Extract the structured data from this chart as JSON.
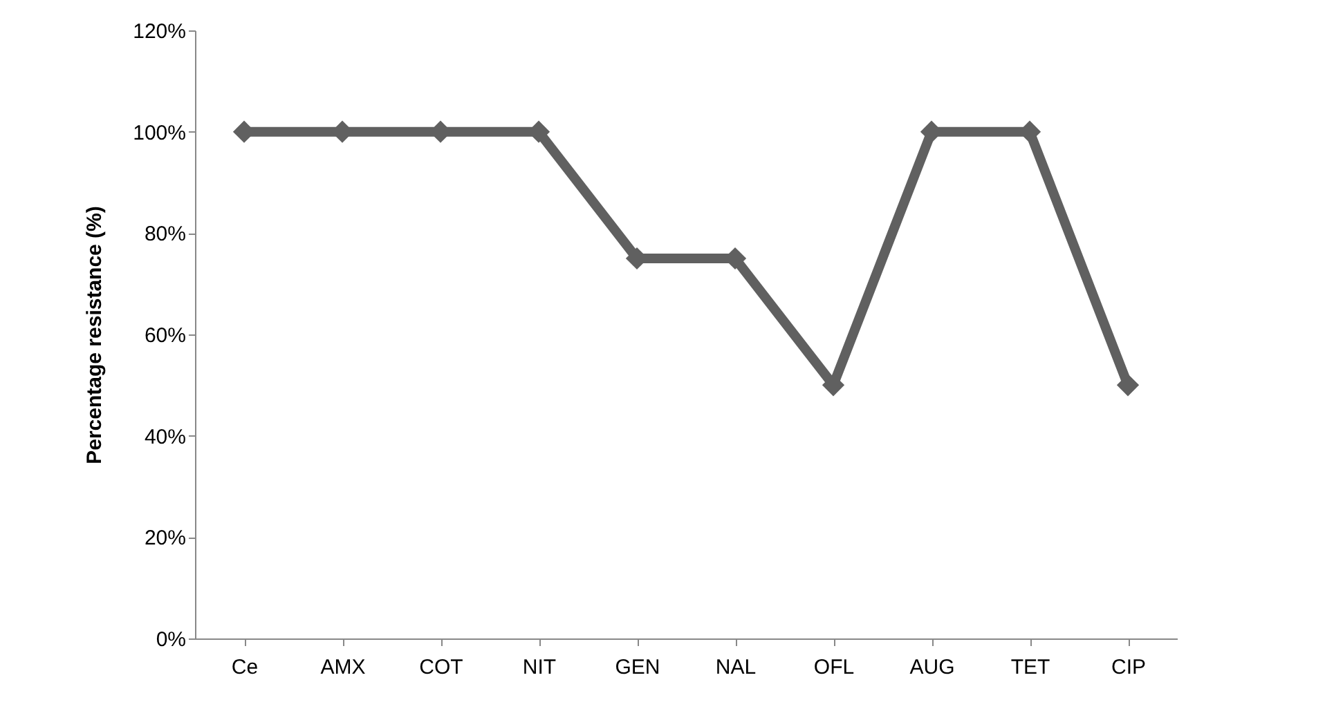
{
  "chart_data": {
    "type": "line",
    "ylabel": "Percentage resistance (%)",
    "categories": [
      "Ce",
      "AMX",
      "COT",
      "NIT",
      "GEN",
      "NAL",
      "OFL",
      "AUG",
      "TET",
      "CIP"
    ],
    "series": [
      {
        "color": "#606060",
        "values": [
          100,
          100,
          100,
          100,
          75,
          75,
          50,
          100,
          100,
          50
        ]
      }
    ],
    "ylim": [
      0,
      120
    ],
    "yticks": [
      {
        "value": 0,
        "label": "0%"
      },
      {
        "value": 20,
        "label": "20%"
      },
      {
        "value": 40,
        "label": "40%"
      },
      {
        "value": 60,
        "label": "60%"
      },
      {
        "value": 80,
        "label": "80%"
      },
      {
        "value": 100,
        "label": "100%"
      },
      {
        "value": 120,
        "label": "120%"
      }
    ],
    "grid": false,
    "marker": "diamond",
    "line_style": "solid"
  }
}
